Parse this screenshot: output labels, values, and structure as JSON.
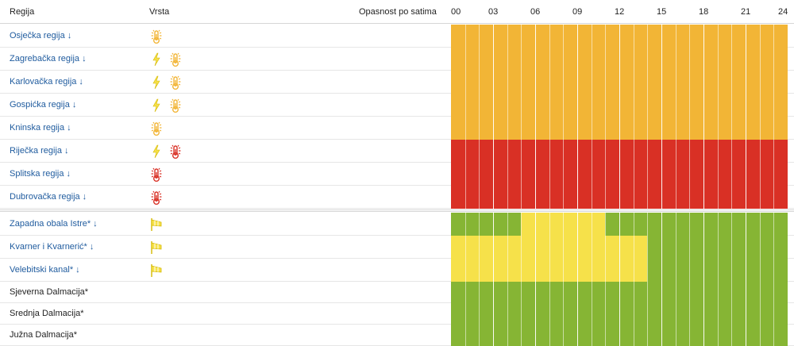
{
  "header": {
    "region_label": "Regija",
    "type_label": "Vrsta",
    "hourly_label": "Opasnost po satima",
    "hour_ticks": [
      "00",
      "03",
      "06",
      "09",
      "12",
      "15",
      "18",
      "21",
      "24"
    ]
  },
  "colors": {
    "orange": "#f2b536",
    "red": "#d93025",
    "yellow": "#f6e14a",
    "green": "#86b534",
    "link": "#1f5b9e"
  },
  "regions": [
    {
      "name": "Osječka regija",
      "link": true,
      "icons": [
        "heat-orange"
      ],
      "hours": "orange*24"
    },
    {
      "name": "Zagrebačka regija",
      "link": true,
      "icons": [
        "lightning-yellow",
        "heat-orange"
      ],
      "hours": "orange*24"
    },
    {
      "name": "Karlovačka regija",
      "link": true,
      "icons": [
        "lightning-yellow",
        "heat-orange"
      ],
      "hours": "orange*24"
    },
    {
      "name": "Gospićka regija",
      "link": true,
      "icons": [
        "lightning-yellow",
        "heat-orange"
      ],
      "hours": "orange*24"
    },
    {
      "name": "Kninska regija",
      "link": true,
      "icons": [
        "heat-orange"
      ],
      "hours": "orange*24"
    },
    {
      "name": "Riječka regija",
      "link": true,
      "icons": [
        "lightning-yellow",
        "heat-red"
      ],
      "hours": "red*24"
    },
    {
      "name": "Splitska regija",
      "link": true,
      "icons": [
        "heat-red"
      ],
      "hours": "red*24"
    },
    {
      "name": "Dubrovačka regija",
      "link": true,
      "icons": [
        "heat-red"
      ],
      "hours": "red*24"
    }
  ],
  "sea_regions": [
    {
      "name": "Zapadna obala Istre*",
      "link": true,
      "icons": [
        "wind-yellow"
      ],
      "hours": "green*5,yellow*6,green*13"
    },
    {
      "name": "Kvarner i Kvarnerić*",
      "link": true,
      "icons": [
        "wind-yellow"
      ],
      "hours": "yellow*14,green*10"
    },
    {
      "name": "Velebitski kanal*",
      "link": true,
      "icons": [
        "wind-yellow"
      ],
      "hours": "yellow*14,green*10"
    },
    {
      "name": "Sjeverna Dalmacija*",
      "link": false,
      "icons": [],
      "hours": "green*24"
    },
    {
      "name": "Srednja Dalmacija*",
      "link": false,
      "icons": [],
      "hours": "green*24"
    },
    {
      "name": "Južna Dalmacija*",
      "link": false,
      "icons": [],
      "hours": "green*24"
    }
  ]
}
